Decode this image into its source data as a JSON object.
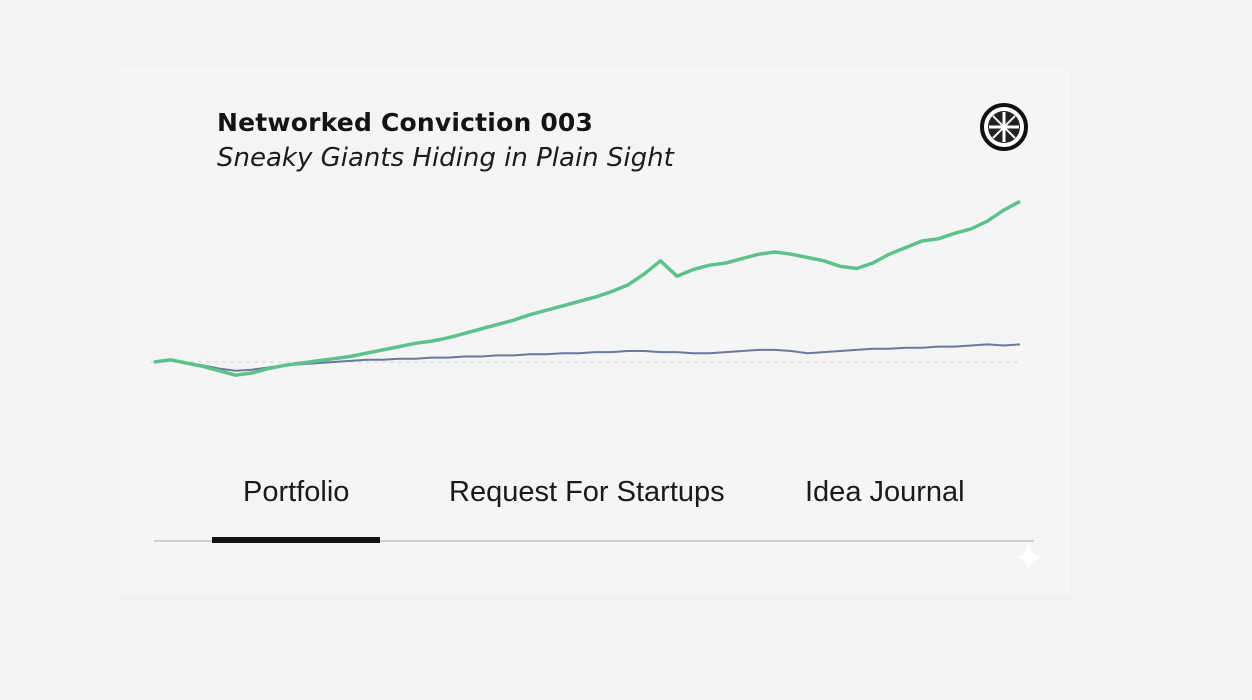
{
  "header": {
    "title": "Networked Conviction 003",
    "subtitle": "Sneaky Giants Hiding in Plain Sight",
    "logo_icon": "wheel-globe-icon"
  },
  "tabs": [
    {
      "label": "Portfolio",
      "active": true
    },
    {
      "label": "Request For Startups",
      "active": false
    },
    {
      "label": "Idea Journal",
      "active": false
    }
  ],
  "decor": {
    "sparkle_icon": "sparkle-icon"
  },
  "colors": {
    "portfolio_line": "#5cc18a",
    "benchmark_line": "#6b78a0",
    "baseline": "#d4d4d4",
    "active_tab": "#111111"
  },
  "chart_data": {
    "type": "line",
    "title": "",
    "xlabel": "",
    "ylabel": "",
    "grid": false,
    "baseline": 0,
    "series": [
      {
        "values": [
          0,
          2,
          -1,
          -4,
          -8,
          -12,
          -10,
          -6,
          -3,
          -1,
          1,
          3,
          5,
          8,
          11,
          14,
          17,
          19,
          22,
          26,
          30,
          34,
          38,
          43,
          47,
          51,
          55,
          59,
          64,
          70,
          80,
          92,
          78,
          84,
          88,
          90,
          94,
          98,
          100,
          98,
          95,
          92,
          87,
          85,
          90,
          98,
          104,
          110,
          112,
          117,
          121,
          128,
          138,
          146
        ]
      },
      {
        "values": [
          0,
          2,
          -1,
          -3,
          -6,
          -8,
          -7,
          -5,
          -3,
          -2,
          -1,
          0,
          1,
          2,
          2,
          3,
          3,
          4,
          4,
          5,
          5,
          6,
          6,
          7,
          7,
          8,
          8,
          9,
          9,
          10,
          10,
          9,
          9,
          8,
          8,
          9,
          10,
          11,
          11,
          10,
          8,
          9,
          10,
          11,
          12,
          12,
          13,
          13,
          14,
          14,
          15,
          16,
          15,
          16
        ]
      }
    ]
  }
}
